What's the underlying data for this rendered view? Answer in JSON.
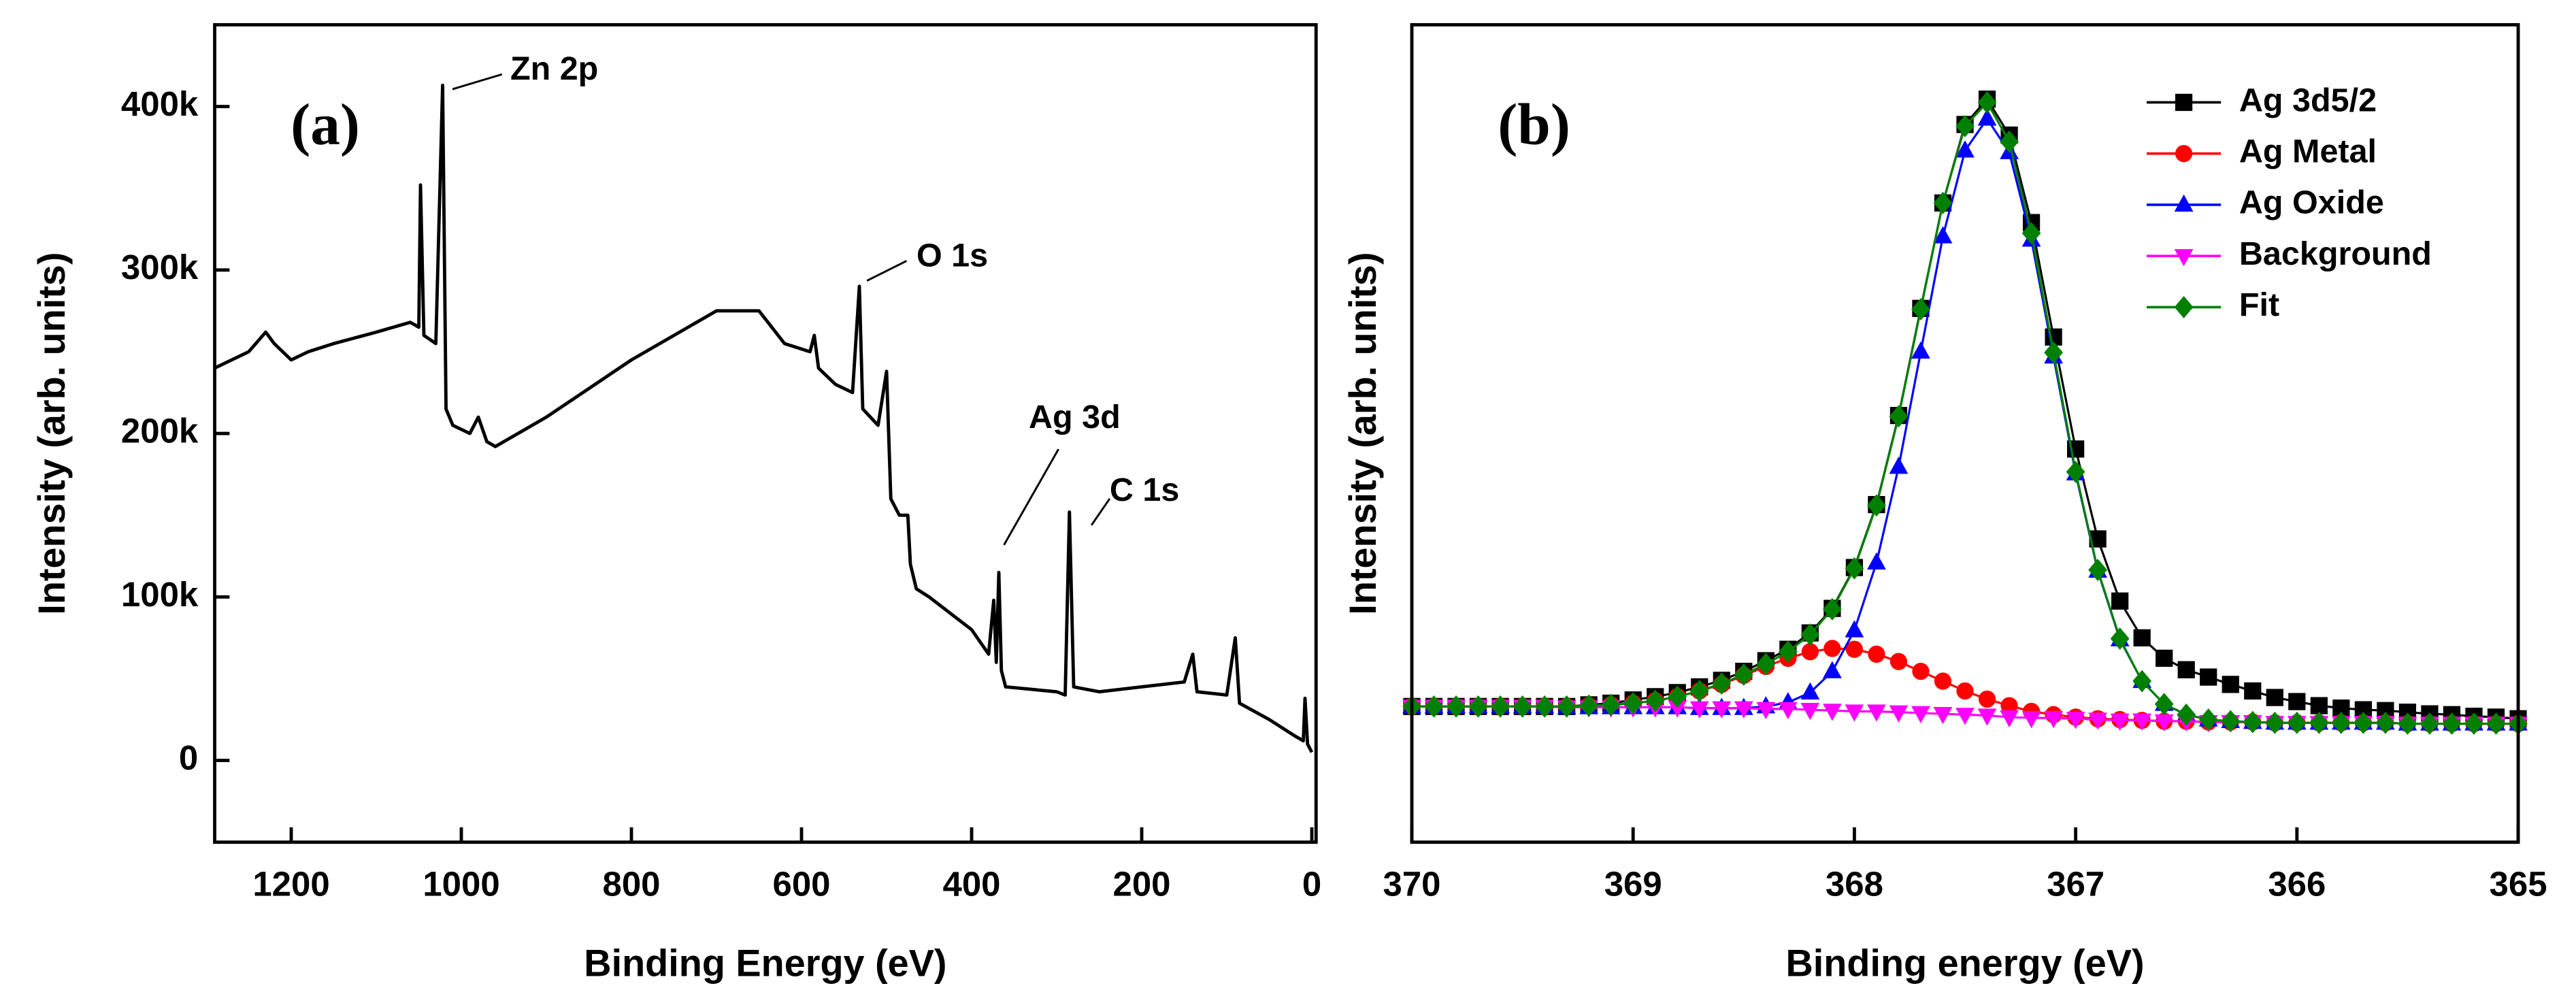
{
  "chart_data": [
    {
      "type": "line",
      "panel_label": "(a)",
      "x_label": "Binding Energy (eV)",
      "y_label": "Intensity (arb. units)",
      "annotations": [
        "Zn 2p",
        "O 1s",
        "Ag 3d",
        "C 1s"
      ],
      "xlim": [
        1290,
        -5
      ],
      "xticks": [
        1200,
        1000,
        800,
        600,
        400,
        200,
        0
      ],
      "ylim": [
        -50000,
        450000
      ],
      "yticks": [
        0,
        {
          "value": 100000,
          "label": "100k"
        },
        {
          "value": 200000,
          "label": "200k"
        },
        {
          "value": 300000,
          "label": "300k"
        },
        {
          "value": 400000,
          "label": "400k"
        }
      ],
      "x": [
        1290,
        1250,
        1230,
        1220,
        1200,
        1180,
        1150,
        1100,
        1060,
        1050,
        1048,
        1044,
        1030,
        1022,
        1018,
        1010,
        990,
        980,
        970,
        960,
        900,
        800,
        700,
        650,
        620,
        590,
        585,
        580,
        560,
        540,
        532,
        528,
        510,
        500,
        495,
        485,
        475,
        472,
        465,
        450,
        400,
        380,
        374,
        371,
        368,
        365,
        360,
        300,
        290,
        285,
        280,
        250,
        200,
        150,
        140,
        135,
        100,
        90,
        85,
        50,
        20,
        10,
        8,
        5,
        0
      ],
      "series": [
        {
          "color": "#000000",
          "values": [
            240000,
            250000,
            262000,
            255000,
            245000,
            250000,
            255000,
            262000,
            268000,
            265000,
            352000,
            260000,
            255000,
            413000,
            215000,
            205000,
            200000,
            210000,
            195000,
            192000,
            210000,
            245000,
            275000,
            275000,
            255000,
            250000,
            260000,
            240000,
            230000,
            225000,
            290000,
            215000,
            205000,
            238000,
            160000,
            150000,
            150000,
            120000,
            105000,
            100000,
            80000,
            65000,
            98000,
            60000,
            115000,
            55000,
            45000,
            42000,
            40000,
            152000,
            45000,
            42000,
            45000,
            48000,
            65000,
            42000,
            40000,
            75000,
            35000,
            25000,
            15000,
            12000,
            38000,
            10000,
            5000
          ]
        }
      ]
    },
    {
      "type": "line",
      "panel_label": "(b)",
      "x_label": "Binding energy (eV)",
      "y_label": "Intensity (arb. units)",
      "xlim": [
        370,
        365
      ],
      "xticks": [
        370,
        369,
        368,
        367,
        366,
        365
      ],
      "ylim": [
        0,
        100
      ],
      "legend": "upper right",
      "x": [
        370,
        369.9,
        369.8,
        369.7,
        369.6,
        369.5,
        369.4,
        369.3,
        369.2,
        369.1,
        369,
        368.9,
        368.8,
        368.7,
        368.6,
        368.5,
        368.4,
        368.3,
        368.2,
        368.1,
        368,
        367.9,
        367.8,
        367.7,
        367.6,
        367.5,
        367.4,
        367.3,
        367.2,
        367.1,
        367,
        366.9,
        366.8,
        366.7,
        366.6,
        366.5,
        366.4,
        366.3,
        366.2,
        366.1,
        366,
        365.9,
        365.8,
        365.7,
        365.6,
        365.5,
        365.4,
        365.3,
        365.2,
        365.1,
        365
      ],
      "series": [
        {
          "name": "Ag 3d5/2",
          "color": "#000000",
          "marker": "square",
          "values": [
            16.6,
            16.6,
            16.6,
            16.6,
            16.6,
            16.6,
            16.6,
            16.6,
            16.8,
            17.0,
            17.4,
            17.8,
            18.3,
            19.0,
            19.8,
            20.9,
            22.2,
            23.6,
            25.6,
            28.6,
            33.6,
            41.3,
            52.2,
            65.3,
            78.2,
            87.8,
            90.9,
            86.5,
            75.8,
            61.8,
            48.1,
            37.1,
            29.5,
            25.0,
            22.5,
            21.1,
            20.2,
            19.3,
            18.5,
            17.7,
            17.2,
            16.7,
            16.4,
            16.2,
            16.1,
            15.9,
            15.7,
            15.6,
            15.4,
            15.3,
            15.1
          ]
        },
        {
          "name": "Ag Metal",
          "color": "#ff0000",
          "marker": "circle",
          "values": [
            16.6,
            16.6,
            16.6,
            16.6,
            16.6,
            16.6,
            16.6,
            16.6,
            16.7,
            16.8,
            17.0,
            17.3,
            17.8,
            18.5,
            19.3,
            20.4,
            21.5,
            22.5,
            23.3,
            23.7,
            23.6,
            23.0,
            22.1,
            20.9,
            19.7,
            18.5,
            17.5,
            16.7,
            16.0,
            15.6,
            15.3,
            15.1,
            15.0,
            14.9,
            14.8,
            14.8,
            14.7,
            14.7,
            14.7,
            14.6,
            14.6,
            14.6,
            14.6,
            14.6,
            14.6,
            14.5,
            14.5,
            14.5,
            14.5,
            14.5,
            14.5
          ]
        },
        {
          "name": "Ag Oxide",
          "color": "#0000ff",
          "marker": "triangle-up",
          "values": [
            16.6,
            16.6,
            16.6,
            16.6,
            16.6,
            16.6,
            16.6,
            16.5,
            16.5,
            16.5,
            16.5,
            16.5,
            16.5,
            16.4,
            16.4,
            16.4,
            16.6,
            17.1,
            18.3,
            20.9,
            25.9,
            34.2,
            45.9,
            60.0,
            74.1,
            84.6,
            88.5,
            84.4,
            73.7,
            59.4,
            45.1,
            33.2,
            24.8,
            19.7,
            16.9,
            15.6,
            15.0,
            14.8,
            14.7,
            14.6,
            14.6,
            14.6,
            14.6,
            14.6,
            14.6,
            14.5,
            14.5,
            14.5,
            14.5,
            14.5,
            14.5
          ]
        },
        {
          "name": "Background",
          "color": "#ff00ff",
          "marker": "triangle-down",
          "values": [
            16.6,
            16.6,
            16.6,
            16.6,
            16.6,
            16.6,
            16.6,
            16.5,
            16.5,
            16.5,
            16.5,
            16.5,
            16.5,
            16.4,
            16.4,
            16.4,
            16.3,
            16.3,
            16.2,
            16.1,
            16.0,
            16.0,
            15.9,
            15.8,
            15.7,
            15.6,
            15.5,
            15.3,
            15.2,
            15.2,
            15.1,
            15.0,
            14.9,
            14.9,
            14.8,
            14.8,
            14.7,
            14.7,
            14.7,
            14.6,
            14.6,
            14.6,
            14.6,
            14.6,
            14.6,
            14.5,
            14.5,
            14.5,
            14.5,
            14.5,
            14.5
          ]
        },
        {
          "name": "Fit",
          "color": "#008000",
          "marker": "diamond",
          "values": [
            16.6,
            16.6,
            16.6,
            16.6,
            16.6,
            16.6,
            16.6,
            16.6,
            16.7,
            16.8,
            17.0,
            17.3,
            17.8,
            18.5,
            19.4,
            20.5,
            21.8,
            23.3,
            25.4,
            28.5,
            33.5,
            41.2,
            52.1,
            65.2,
            78.2,
            87.6,
            90.5,
            85.7,
            74.5,
            59.9,
            45.3,
            33.3,
            24.9,
            19.7,
            16.9,
            15.6,
            15.0,
            14.8,
            14.7,
            14.6,
            14.6,
            14.6,
            14.6,
            14.6,
            14.6,
            14.5,
            14.5,
            14.5,
            14.5,
            14.5,
            14.5
          ]
        }
      ]
    }
  ]
}
